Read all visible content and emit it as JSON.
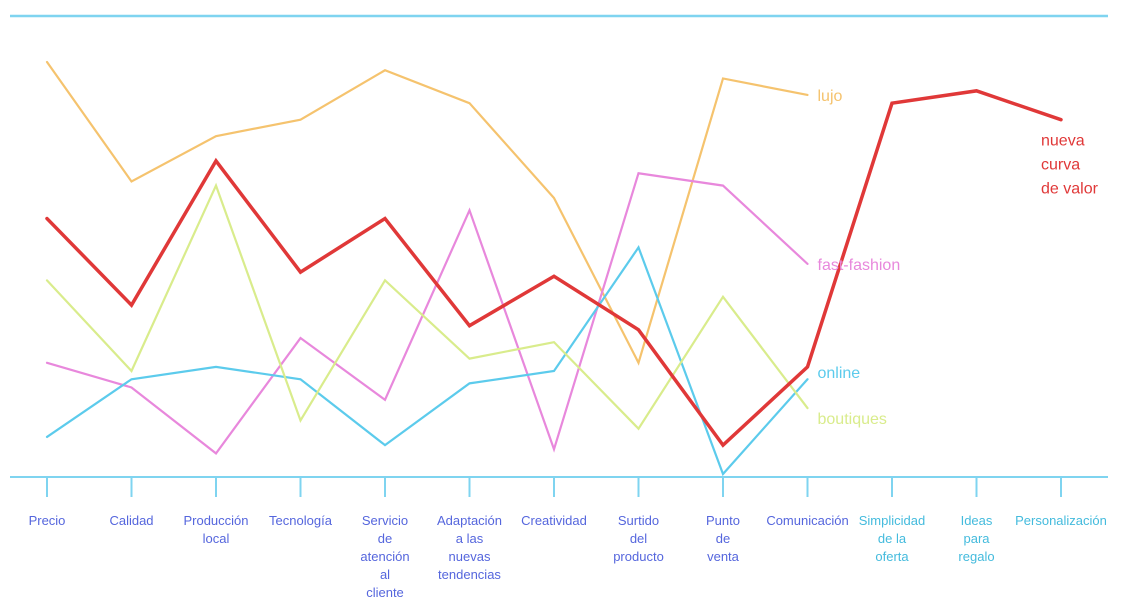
{
  "chart_data": {
    "type": "line",
    "title": "",
    "xlabel": "",
    "ylabel": "",
    "ylim": [
      0,
      10
    ],
    "grid": false,
    "legend": "inline-labels-at-line-ends",
    "colors": {
      "axis": "#7fd4f0",
      "tick_label_primary": "#5566dd",
      "tick_label_secondary": "#44bbdd"
    },
    "categories": [
      "Precio",
      "Calidad",
      "Producción local",
      "Tecnología",
      "Servicio de atención al cliente",
      "Adaptación a las nuevas tendencias",
      "Creatividad",
      "Surtido del producto",
      "Punto de venta",
      "Comunicación",
      "Simplicidad de la oferta",
      "Ideas para regalo",
      "Personalización"
    ],
    "category_lines": [
      [
        "Precio"
      ],
      [
        "Calidad"
      ],
      [
        "Producción",
        "local"
      ],
      [
        "Tecnología"
      ],
      [
        "Servicio",
        "de",
        "atención",
        "al",
        "cliente"
      ],
      [
        "Adaptación",
        "a las",
        "nuevas",
        "tendencias"
      ],
      [
        "Creatividad"
      ],
      [
        "Surtido",
        "del",
        "producto"
      ],
      [
        "Punto",
        "de",
        "venta"
      ],
      [
        "Comunicación"
      ],
      [
        "Simplicidad",
        "de la",
        "oferta"
      ],
      [
        "Ideas",
        "para",
        "regalo"
      ],
      [
        "Personalización"
      ]
    ],
    "series": [
      {
        "name": "lujo",
        "color": "#f5c36e",
        "values": [
          10.0,
          7.1,
          8.2,
          8.6,
          9.8,
          9.0,
          6.7,
          2.7,
          9.6,
          9.2,
          null,
          null,
          null
        ]
      },
      {
        "name": "fast-fashion",
        "color": "#e888dc",
        "values": [
          2.7,
          2.1,
          0.5,
          3.3,
          1.8,
          6.4,
          0.6,
          7.3,
          7.0,
          5.1,
          null,
          null,
          null
        ]
      },
      {
        "name": "online",
        "color": "#5ccbec",
        "values": [
          0.9,
          2.3,
          2.6,
          2.3,
          0.7,
          2.2,
          2.5,
          5.5,
          0.0,
          2.3,
          null,
          null,
          null
        ]
      },
      {
        "name": "boutiques",
        "color": "#d9ec8c",
        "values": [
          4.7,
          2.5,
          7.0,
          1.3,
          4.7,
          2.8,
          3.2,
          1.1,
          4.3,
          1.6,
          null,
          null,
          null
        ]
      },
      {
        "name": "nueva curva de valor",
        "color": "#e03838",
        "label_lines": [
          "nueva",
          "curva",
          "de valor"
        ],
        "values": [
          6.2,
          4.1,
          7.6,
          4.9,
          6.2,
          3.6,
          4.8,
          3.5,
          0.7,
          2.6,
          9.0,
          9.3,
          8.6
        ]
      }
    ]
  }
}
